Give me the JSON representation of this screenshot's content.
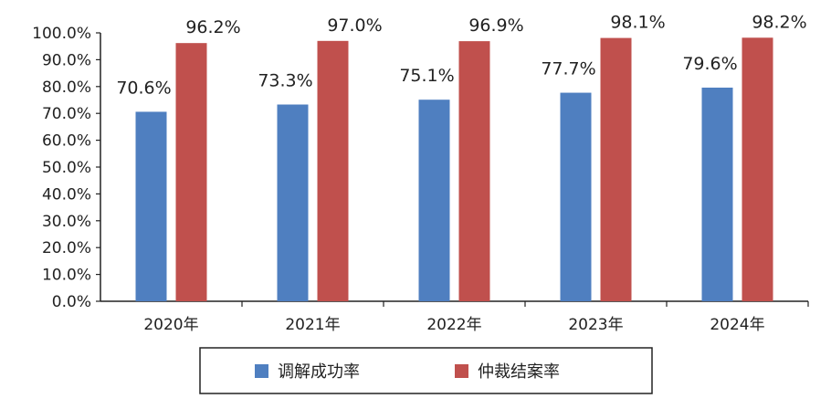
{
  "chart_data": {
    "type": "bar",
    "categories": [
      "2020年",
      "2021年",
      "2022年",
      "2023年",
      "2024年"
    ],
    "series": [
      {
        "name": "调解成功率",
        "values": [
          70.6,
          73.3,
          75.1,
          77.7,
          79.6
        ],
        "color": "#4F7FC0"
      },
      {
        "name": "仲裁结案率",
        "values": [
          96.2,
          97.0,
          96.9,
          98.1,
          98.2
        ],
        "color": "#C0504D"
      }
    ],
    "data_labels": [
      [
        "70.6%",
        "73.3%",
        "75.1%",
        "77.7%",
        "79.6%"
      ],
      [
        "96.2%",
        "97.0%",
        "96.9%",
        "98.1%",
        "98.2%"
      ]
    ],
    "y_ticks": [
      "0.0%",
      "10.0%",
      "20.0%",
      "30.0%",
      "40.0%",
      "50.0%",
      "60.0%",
      "70.0%",
      "80.0%",
      "90.0%",
      "100.0%"
    ],
    "ylim": [
      0,
      100
    ],
    "grid": false,
    "legend_position": "bottom"
  }
}
